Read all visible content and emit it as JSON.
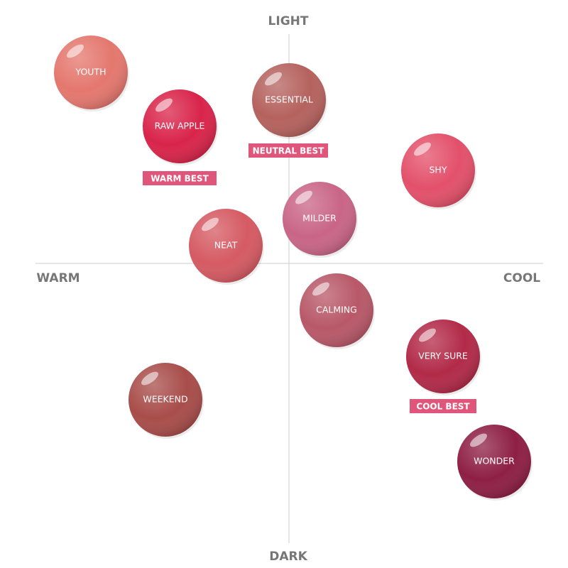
{
  "axes": {
    "top": "LIGHT",
    "bottom": "DARK",
    "left": "WARM",
    "right": "COOL"
  },
  "nodes": [
    {
      "label": "YOUTH"
    },
    {
      "label": "RAW APPLE"
    },
    {
      "label": "ESSENTIAL"
    },
    {
      "label": "SHY"
    },
    {
      "label": "MILDER"
    },
    {
      "label": "NEAT"
    },
    {
      "label": "CALMING"
    },
    {
      "label": "VERY SURE"
    },
    {
      "label": "WEEKEND"
    },
    {
      "label": "WONDER"
    }
  ],
  "badges": [
    {
      "label": "WARM BEST"
    },
    {
      "label": "NEUTRAL BEST"
    },
    {
      "label": "COOL BEST"
    }
  ]
}
